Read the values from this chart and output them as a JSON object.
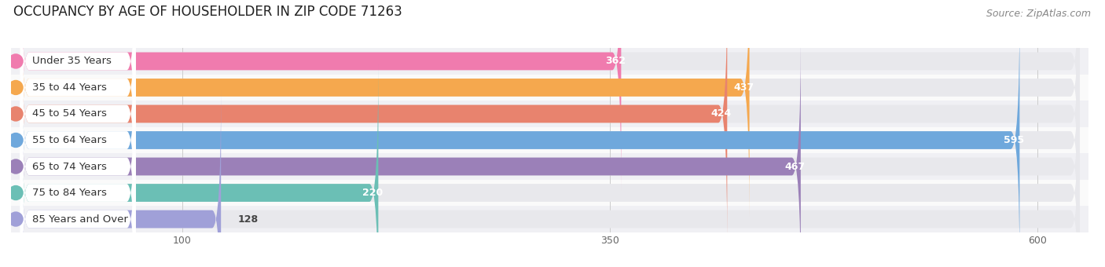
{
  "title": "OCCUPANCY BY AGE OF HOUSEHOLDER IN ZIP CODE 71263",
  "source": "Source: ZipAtlas.com",
  "categories": [
    "Under 35 Years",
    "35 to 44 Years",
    "45 to 54 Years",
    "55 to 64 Years",
    "65 to 74 Years",
    "75 to 84 Years",
    "85 Years and Over"
  ],
  "values": [
    362,
    437,
    424,
    595,
    467,
    220,
    128
  ],
  "bar_colors": [
    "#F07BAE",
    "#F5A84E",
    "#E8836E",
    "#6FA8DC",
    "#9B80B8",
    "#6BBFB5",
    "#A0A0D8"
  ],
  "bar_bg_color": "#E8E8EC",
  "label_bg_color": "#FFFFFF",
  "xmin": 0,
  "xmax": 630,
  "xticks": [
    100,
    350,
    600
  ],
  "title_fontsize": 12,
  "source_fontsize": 9,
  "label_fontsize": 9.5,
  "value_fontsize": 9,
  "bg_color": "#FFFFFF",
  "row_bg_even": "#F0F0F4",
  "row_bg_odd": "#FAFAFA"
}
